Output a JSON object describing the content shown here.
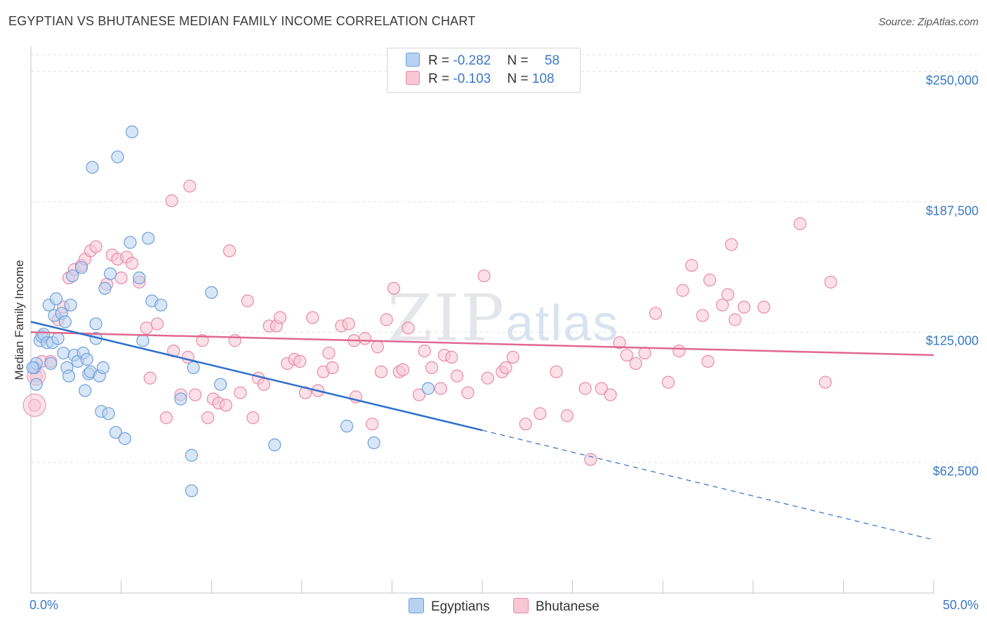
{
  "header": {
    "title": "EGYPTIAN VS BHUTANESE MEDIAN FAMILY INCOME CORRELATION CHART",
    "source": "Source: ZipAtlas.com"
  },
  "watermark": {
    "zip": "ZIP",
    "atlas": "atlas"
  },
  "legend": {
    "rows": [
      {
        "r_label": "R = ",
        "r_value": "-0.282",
        "n_label": "N = ",
        "n_value": "58",
        "color": "#aac8f0"
      },
      {
        "r_label": "R = ",
        "r_value": "-0.103",
        "n_label": "N = ",
        "n_value": "108",
        "color": "#f5b6c9"
      }
    ]
  },
  "bottom_legend": [
    {
      "label": "Egyptians",
      "color": "#aac8f0"
    },
    {
      "label": "Bhutanese",
      "color": "#f5b6c9"
    }
  ],
  "colors": {
    "egyptians_fill": "#b9d1f1",
    "egyptians_stroke": "#6c9fd9",
    "egyptians_line": "#2f6fc9",
    "bhutanese_fill": "#f8c6d5",
    "bhutanese_stroke": "#e88aa8",
    "bhutanese_line": "#e06890",
    "axis_text": "#3a78c9"
  },
  "chart_data": {
    "type": "scatter",
    "title": "EGYPTIAN VS BHUTANESE MEDIAN FAMILY INCOME CORRELATION CHART",
    "xlabel": "",
    "ylabel": "Median Family Income",
    "xlim": [
      0,
      50
    ],
    "ylim": [
      0,
      262000
    ],
    "x_tick_labels": [
      "0.0%",
      "50.0%"
    ],
    "y_ticks": [
      62500,
      125000,
      187500,
      250000
    ],
    "y_tick_labels": [
      "$62,500",
      "$125,000",
      "$187,500",
      "$250,000"
    ],
    "grid": true,
    "series": [
      {
        "name": "Egyptians",
        "r": -0.282,
        "n": 58,
        "trend": {
          "x0": 0,
          "y0": 130000,
          "x1": 25,
          "y1": 78000,
          "dash_to_x": 50,
          "dash_to_y": 25500
        },
        "points": [
          [
            0.2,
            108000
          ],
          [
            0.3,
            100000
          ],
          [
            0.3,
            110000
          ],
          [
            0.5,
            121000
          ],
          [
            0.6,
            123000
          ],
          [
            0.7,
            124000
          ],
          [
            0.9,
            120000
          ],
          [
            1.0,
            138000
          ],
          [
            1.1,
            110000
          ],
          [
            1.2,
            120000
          ],
          [
            1.3,
            133000
          ],
          [
            1.4,
            141000
          ],
          [
            1.5,
            122000
          ],
          [
            1.7,
            134000
          ],
          [
            1.8,
            115000
          ],
          [
            1.9,
            130000
          ],
          [
            2.0,
            108000
          ],
          [
            2.1,
            104000
          ],
          [
            2.2,
            138000
          ],
          [
            2.3,
            152000
          ],
          [
            2.4,
            114000
          ],
          [
            2.6,
            111000
          ],
          [
            2.8,
            156000
          ],
          [
            2.9,
            115000
          ],
          [
            3.0,
            97000
          ],
          [
            3.1,
            112000
          ],
          [
            3.2,
            105000
          ],
          [
            3.3,
            106000
          ],
          [
            3.4,
            204000
          ],
          [
            3.6,
            122000
          ],
          [
            3.6,
            129000
          ],
          [
            3.8,
            104000
          ],
          [
            3.9,
            87000
          ],
          [
            4.0,
            108000
          ],
          [
            4.1,
            146000
          ],
          [
            4.3,
            86000
          ],
          [
            4.4,
            153000
          ],
          [
            4.7,
            77000
          ],
          [
            4.8,
            209000
          ],
          [
            5.2,
            74000
          ],
          [
            5.5,
            168000
          ],
          [
            5.6,
            221000
          ],
          [
            6.0,
            151000
          ],
          [
            6.2,
            121000
          ],
          [
            6.5,
            170000
          ],
          [
            6.7,
            140000
          ],
          [
            7.2,
            138000
          ],
          [
            8.3,
            93000
          ],
          [
            8.9,
            66000
          ],
          [
            8.9,
            49000
          ],
          [
            9.0,
            108000
          ],
          [
            10.0,
            144000
          ],
          [
            10.5,
            100000
          ],
          [
            13.5,
            71000
          ],
          [
            17.5,
            80000
          ],
          [
            19.0,
            72000
          ],
          [
            22.0,
            98000
          ],
          [
            0.1,
            108000
          ]
        ]
      },
      {
        "name": "Bhutanese",
        "r": -0.103,
        "n": 108,
        "trend": {
          "x0": 0,
          "y0": 125000,
          "x1": 50,
          "y1": 114000
        },
        "points": [
          [
            0.2,
            90000
          ],
          [
            0.3,
            104000
          ],
          [
            0.6,
            111000
          ],
          [
            1.1,
            111000
          ],
          [
            1.5,
            131000
          ],
          [
            1.8,
            137000
          ],
          [
            2.1,
            151000
          ],
          [
            2.4,
            155000
          ],
          [
            2.8,
            157000
          ],
          [
            3.0,
            160000
          ],
          [
            3.3,
            164000
          ],
          [
            3.6,
            166000
          ],
          [
            4.2,
            148000
          ],
          [
            4.5,
            162000
          ],
          [
            4.8,
            160000
          ],
          [
            5.0,
            151000
          ],
          [
            5.3,
            161000
          ],
          [
            5.6,
            158000
          ],
          [
            6.0,
            149000
          ],
          [
            6.4,
            127000
          ],
          [
            6.6,
            103000
          ],
          [
            7.0,
            129000
          ],
          [
            7.5,
            84000
          ],
          [
            7.8,
            188000
          ],
          [
            7.9,
            116000
          ],
          [
            8.3,
            95000
          ],
          [
            8.7,
            113000
          ],
          [
            8.8,
            195000
          ],
          [
            9.1,
            95000
          ],
          [
            9.5,
            121000
          ],
          [
            9.8,
            84000
          ],
          [
            10.1,
            93000
          ],
          [
            10.4,
            91000
          ],
          [
            10.8,
            90000
          ],
          [
            11.0,
            164000
          ],
          [
            11.3,
            121000
          ],
          [
            11.6,
            96000
          ],
          [
            12.0,
            140000
          ],
          [
            12.3,
            84000
          ],
          [
            12.6,
            103000
          ],
          [
            12.9,
            100000
          ],
          [
            13.2,
            128000
          ],
          [
            13.6,
            128000
          ],
          [
            13.8,
            132000
          ],
          [
            14.2,
            110000
          ],
          [
            14.6,
            112000
          ],
          [
            14.9,
            111000
          ],
          [
            15.2,
            96000
          ],
          [
            15.6,
            132000
          ],
          [
            15.9,
            97000
          ],
          [
            16.2,
            106000
          ],
          [
            16.5,
            115000
          ],
          [
            16.7,
            108000
          ],
          [
            17.2,
            128000
          ],
          [
            17.6,
            129000
          ],
          [
            17.9,
            121000
          ],
          [
            18.0,
            94000
          ],
          [
            18.5,
            122000
          ],
          [
            18.9,
            81000
          ],
          [
            19.2,
            118000
          ],
          [
            19.4,
            106000
          ],
          [
            19.7,
            131000
          ],
          [
            20.1,
            146000
          ],
          [
            20.4,
            106000
          ],
          [
            20.6,
            107000
          ],
          [
            20.9,
            127000
          ],
          [
            21.5,
            95000
          ],
          [
            21.8,
            116000
          ],
          [
            22.2,
            108000
          ],
          [
            22.7,
            98000
          ],
          [
            22.9,
            114000
          ],
          [
            23.3,
            113000
          ],
          [
            23.6,
            104000
          ],
          [
            24.2,
            96000
          ],
          [
            25.1,
            152000
          ],
          [
            25.3,
            103000
          ],
          [
            26.1,
            106000
          ],
          [
            26.3,
            108000
          ],
          [
            26.7,
            113000
          ],
          [
            27.4,
            81000
          ],
          [
            28.2,
            86000
          ],
          [
            29.1,
            106000
          ],
          [
            29.7,
            85000
          ],
          [
            30.7,
            98000
          ],
          [
            31.0,
            64000
          ],
          [
            31.6,
            98000
          ],
          [
            32.1,
            95000
          ],
          [
            32.6,
            120000
          ],
          [
            33.0,
            114000
          ],
          [
            33.5,
            110000
          ],
          [
            34.0,
            115000
          ],
          [
            34.6,
            134000
          ],
          [
            35.3,
            101000
          ],
          [
            35.9,
            116000
          ],
          [
            36.1,
            145000
          ],
          [
            36.6,
            157000
          ],
          [
            37.2,
            133000
          ],
          [
            37.5,
            111000
          ],
          [
            37.6,
            150000
          ],
          [
            38.3,
            138000
          ],
          [
            38.6,
            143000
          ],
          [
            38.8,
            167000
          ],
          [
            39.0,
            131000
          ],
          [
            39.5,
            137000
          ],
          [
            40.6,
            137000
          ],
          [
            42.6,
            177000
          ],
          [
            44.0,
            101000
          ],
          [
            44.3,
            149000
          ]
        ]
      }
    ]
  }
}
